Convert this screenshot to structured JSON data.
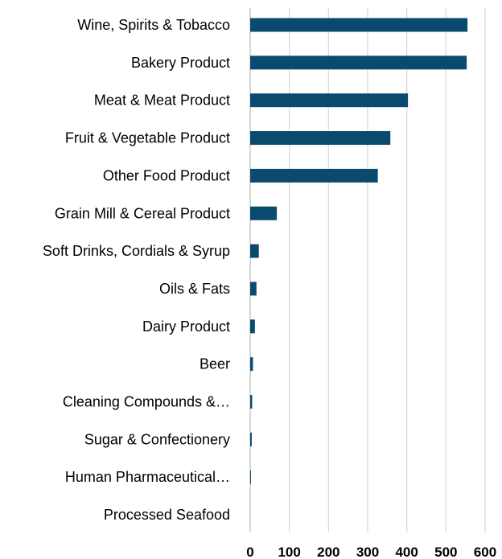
{
  "chart_data": {
    "type": "bar",
    "orientation": "horizontal",
    "categories": [
      "Wine, Spirits & Tobacco",
      "Bakery Product",
      "Meat & Meat Product",
      "Fruit & Vegetable Product",
      "Other Food Product",
      "Grain Mill & Cereal Product",
      "Soft Drinks, Cordials & Syrup",
      "Oils & Fats",
      "Dairy Product",
      "Beer",
      "Cleaning Compounds &…",
      "Sugar & Confectionery",
      "Human Pharmaceutical…",
      "Processed Seafood"
    ],
    "values": [
      555,
      553,
      403,
      358,
      326,
      68,
      22,
      16,
      12,
      7,
      5,
      4,
      2,
      0
    ],
    "xlim": [
      0,
      600
    ],
    "xticks": [
      "0",
      "100",
      "200",
      "300",
      "400",
      "500",
      "600"
    ],
    "title": "",
    "xlabel": "",
    "ylabel": "",
    "grid": "vertical",
    "legend": "none",
    "bar_color": "#0a4a6e",
    "grid_color": "#d9d9d9"
  }
}
